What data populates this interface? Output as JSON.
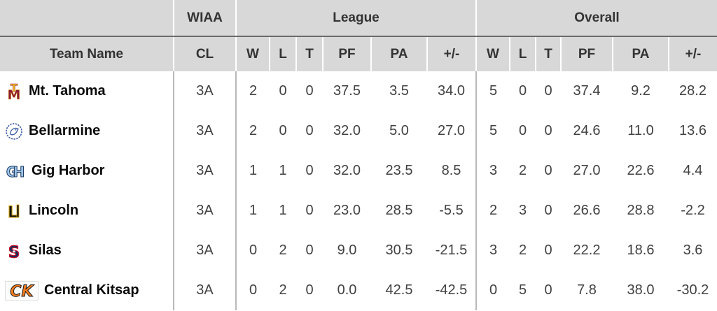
{
  "table": {
    "groups": [
      {
        "label": "",
        "span": 1
      },
      {
        "label": "WIAA",
        "span": 1
      },
      {
        "label": "League",
        "span": 6
      },
      {
        "label": "Overall",
        "span": 6
      }
    ],
    "columns": [
      "Team Name",
      "CL",
      "W",
      "L",
      "T",
      "PF",
      "PA",
      "+/-",
      "W",
      "L",
      "T",
      "PF",
      "PA",
      "+/-"
    ],
    "rows": [
      {
        "team": "Mt. Tahoma",
        "logo": "mt-tahoma-logo",
        "cl": "3A",
        "league": [
          "2",
          "0",
          "0",
          "37.5",
          "3.5",
          "34.0"
        ],
        "overall": [
          "5",
          "0",
          "0",
          "37.4",
          "9.2",
          "28.2"
        ]
      },
      {
        "team": "Bellarmine",
        "logo": "bellarmine-logo",
        "cl": "3A",
        "league": [
          "2",
          "0",
          "0",
          "32.0",
          "5.0",
          "27.0"
        ],
        "overall": [
          "5",
          "0",
          "0",
          "24.6",
          "11.0",
          "13.6"
        ]
      },
      {
        "team": "Gig Harbor",
        "logo": "gig-harbor-logo",
        "cl": "3A",
        "league": [
          "1",
          "1",
          "0",
          "32.0",
          "23.5",
          "8.5"
        ],
        "overall": [
          "3",
          "2",
          "0",
          "27.0",
          "22.6",
          "4.4"
        ]
      },
      {
        "team": "Lincoln",
        "logo": "lincoln-logo",
        "cl": "3A",
        "league": [
          "1",
          "1",
          "0",
          "23.0",
          "28.5",
          "-5.5"
        ],
        "overall": [
          "2",
          "3",
          "0",
          "26.6",
          "28.8",
          "-2.2"
        ]
      },
      {
        "team": "Silas",
        "logo": "silas-logo",
        "cl": "3A",
        "league": [
          "0",
          "2",
          "0",
          "9.0",
          "30.5",
          "-21.5"
        ],
        "overall": [
          "3",
          "2",
          "0",
          "22.2",
          "18.6",
          "3.6"
        ]
      },
      {
        "team": "Central Kitsap",
        "logo": "central-kitsap-logo",
        "cl": "3A",
        "league": [
          "0",
          "2",
          "0",
          "0.0",
          "42.5",
          "-42.5"
        ],
        "overall": [
          "0",
          "5",
          "0",
          "7.8",
          "38.0",
          "-30.2"
        ]
      }
    ]
  },
  "logos": {
    "mt-tahoma-logo": {
      "colors": [
        "#8c1d2f",
        "#f0b41e"
      ]
    },
    "bellarmine-logo": {
      "colors": [
        "#3a5ba0",
        "#ffffff"
      ]
    },
    "gig-harbor-logo": {
      "colors": [
        "#9dc3e6",
        "#17365d"
      ]
    },
    "lincoln-logo": {
      "colors": [
        "#141414",
        "#d8a200"
      ]
    },
    "silas-logo": {
      "colors": [
        "#1b2a55",
        "#c8102e"
      ]
    },
    "central-kitsap-logo": {
      "colors": [
        "#f47b20",
        "#1a1a1a"
      ]
    }
  },
  "colors": {
    "header_bg": "#d8d8d8",
    "header_divider": "#6b6b6b",
    "body_separator": "#b9b9b9",
    "header_text": "#333333",
    "number_text": "#414141",
    "team_text": "#0a0a0a"
  }
}
